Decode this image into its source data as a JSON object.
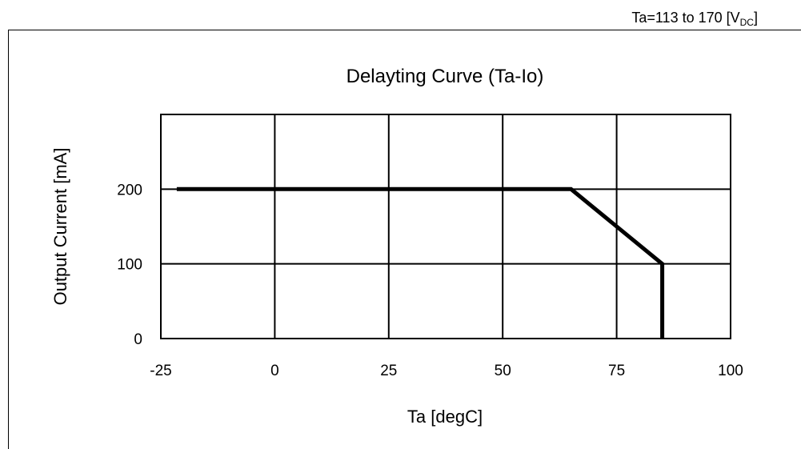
{
  "chart_data": {
    "type": "line",
    "condition": {
      "prefix": "Ta=113 to 170 [V",
      "sub": "DC",
      "suffix": "]"
    },
    "title": "Delayting Curve (Ta-Io)",
    "xlabel": "Ta [degC]",
    "ylabel": "Output  Current [mA]",
    "xlim": [
      -25,
      100
    ],
    "ylim": [
      0,
      300
    ],
    "xticks": [
      -25,
      0,
      25,
      50,
      75,
      100
    ],
    "xtick_labels": [
      "-25",
      "0",
      "25",
      "50",
      "75",
      "100"
    ],
    "yticks": [
      0,
      100,
      200
    ],
    "ytick_labels": [
      "0",
      "100",
      "200"
    ],
    "grid_x": [
      0,
      25,
      50,
      75
    ],
    "grid_y": [
      100,
      200
    ],
    "grid": true,
    "legend": "none",
    "series": [
      {
        "x": [
          -21.5,
          65,
          85,
          85
        ],
        "y": [
          200,
          200,
          100,
          0
        ]
      }
    ],
    "colors": {
      "line": "#000000",
      "grid": "#000000"
    }
  }
}
